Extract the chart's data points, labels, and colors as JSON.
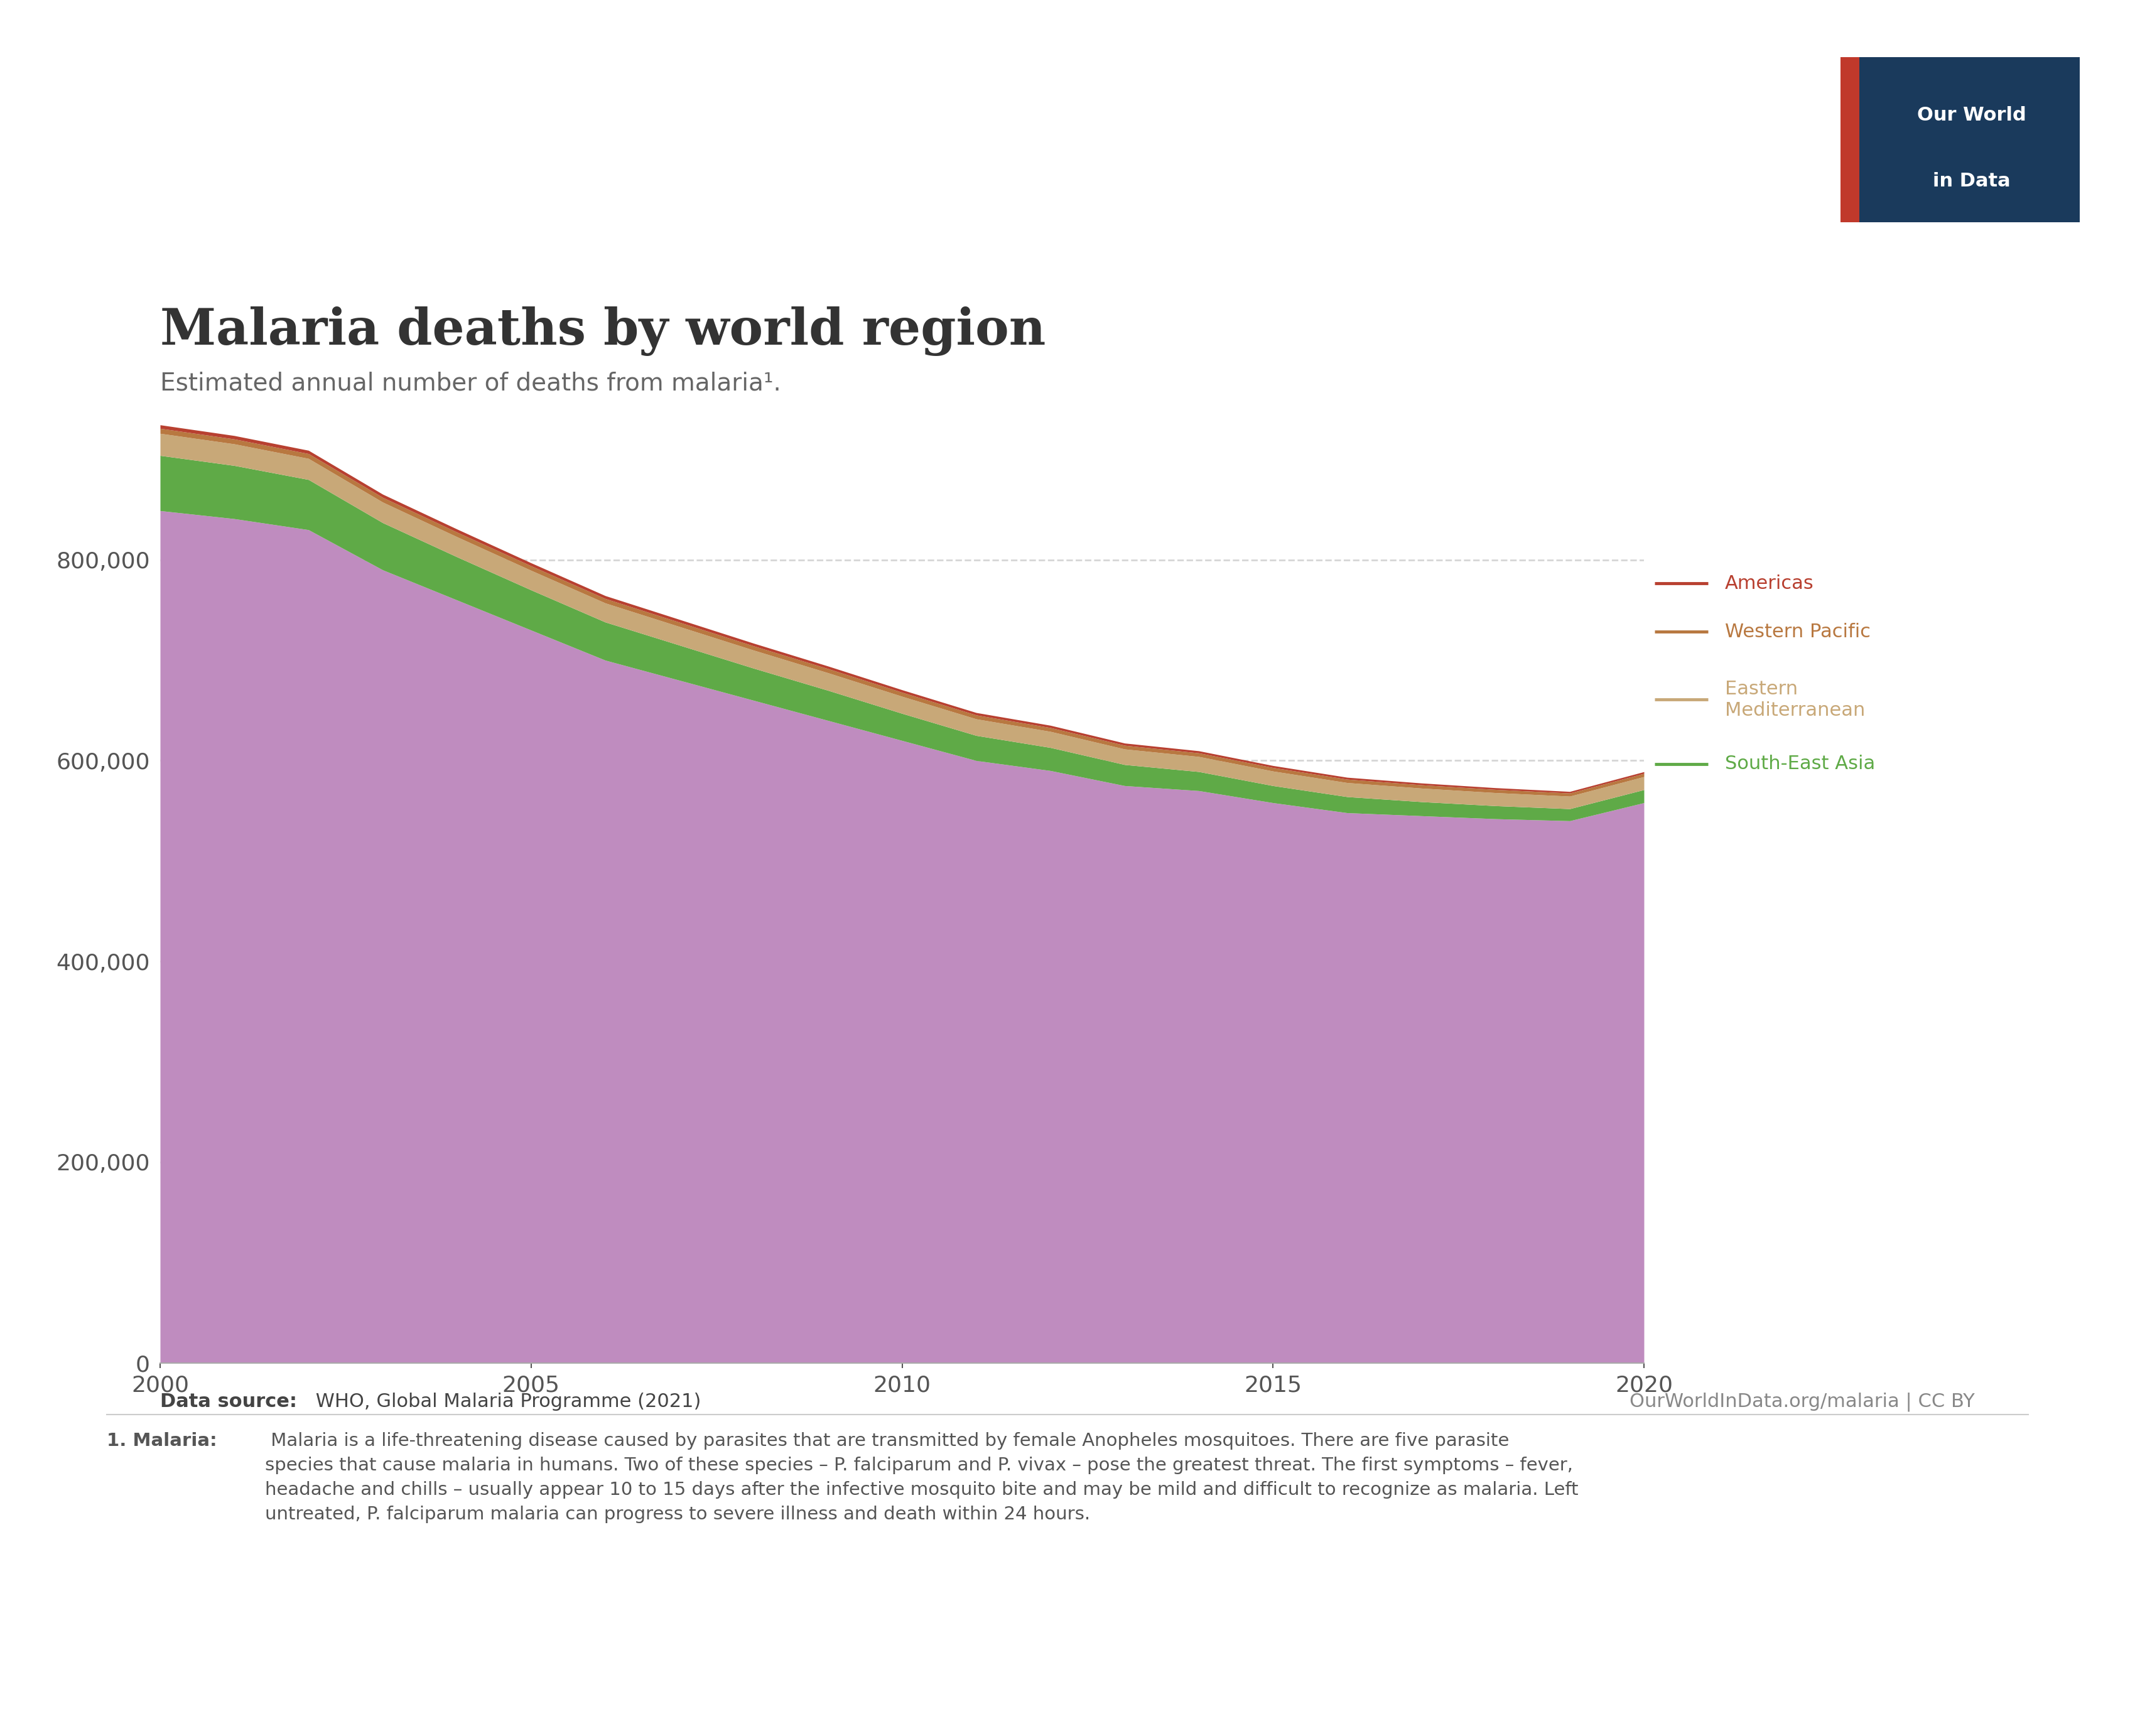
{
  "title": "Malaria deaths by world region",
  "subtitle": "Estimated annual number of deaths from malaria¹.",
  "years": [
    2000,
    2001,
    2002,
    2003,
    2004,
    2005,
    2006,
    2007,
    2008,
    2009,
    2010,
    2011,
    2012,
    2013,
    2014,
    2015,
    2016,
    2017,
    2018,
    2019,
    2020
  ],
  "africa": [
    849000,
    841000,
    830000,
    790000,
    760000,
    730000,
    700000,
    680000,
    660000,
    640000,
    620000,
    600000,
    590000,
    575000,
    570000,
    558000,
    548000,
    545000,
    542000,
    540000,
    558000
  ],
  "south_east_asia": [
    55000,
    53000,
    50000,
    47000,
    43000,
    40000,
    38000,
    35000,
    32000,
    30000,
    27000,
    25000,
    23000,
    21000,
    19000,
    17000,
    16000,
    14000,
    13000,
    12000,
    13000
  ],
  "eastern_mediterranean": [
    22000,
    21500,
    21000,
    20500,
    20000,
    19500,
    19000,
    18500,
    18000,
    17500,
    17000,
    16500,
    16000,
    15500,
    15000,
    14500,
    14000,
    13500,
    13000,
    12500,
    13000
  ],
  "western_pacific": [
    5000,
    4900,
    4800,
    4700,
    4600,
    4500,
    4400,
    4300,
    4200,
    4100,
    4000,
    3900,
    3800,
    3700,
    3600,
    3500,
    3400,
    3300,
    3200,
    3100,
    3200
  ],
  "americas": [
    3500,
    3400,
    3300,
    3200,
    3100,
    3000,
    2900,
    2800,
    2700,
    2600,
    2500,
    2400,
    2300,
    2200,
    2100,
    2000,
    1900,
    1800,
    1700,
    1600,
    1700
  ],
  "africa_color": "#bf8cbf",
  "south_east_asia_color": "#5faa47",
  "eastern_mediterranean_color": "#c8a878",
  "western_pacific_color": "#b87840",
  "americas_color": "#b84030",
  "background_color": "#ffffff",
  "grid_color": "#cccccc",
  "ylim": [
    0,
    960000
  ],
  "yticks": [
    0,
    200000,
    400000,
    600000,
    800000
  ],
  "data_source_bold": "Data source:",
  "data_source_rest": " WHO, Global Malaria Programme (2021)",
  "url": "OurWorldInData.org/malaria | CC BY",
  "footnote_bold": "1. Malaria:",
  "footnote_rest": " Malaria is a life-threatening disease caused by parasites that are transmitted by female Anopheles mosquitoes. There are five parasite\nspecies that cause malaria in humans. Two of these species – P. falciparum and P. vivax – pose the greatest threat. The first symptoms – fever,\nheadache and chills – usually appear 10 to 15 days after the infective mosquito bite and may be mild and difficult to recognize as malaria. Left\nuntreated, P. falciparum malaria can progress to severe illness and death within 24 hours."
}
